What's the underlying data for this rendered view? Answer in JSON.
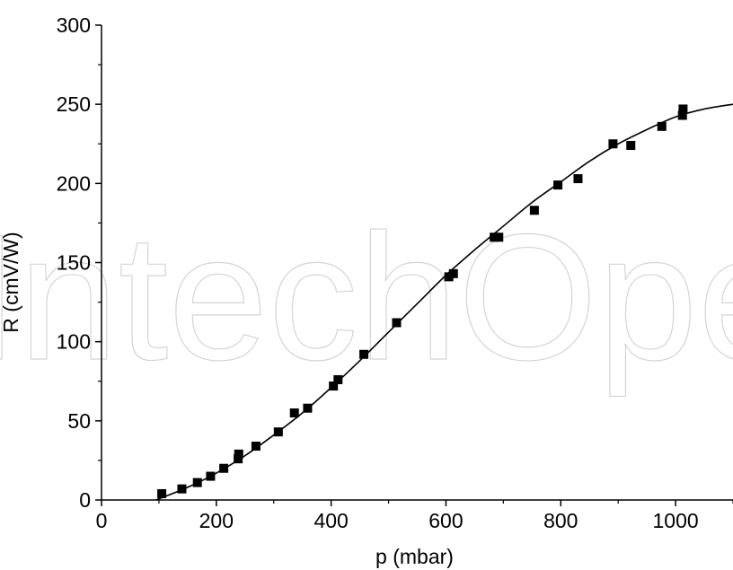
{
  "chart_data": {
    "type": "scatter",
    "title": "",
    "xlabel": "p (mbar)",
    "ylabel": "R (cmV/W)",
    "xlim": [
      0,
      1100
    ],
    "ylim": [
      0,
      300
    ],
    "xticks": [
      0,
      200,
      400,
      600,
      800,
      1000
    ],
    "yticks": [
      0,
      50,
      100,
      150,
      200,
      250,
      300
    ],
    "grid": false,
    "watermark": "IntechOpen",
    "series": [
      {
        "type": "scatter",
        "marker": "square",
        "color": "#000000",
        "x": [
          105,
          140,
          167,
          190,
          213,
          238,
          239,
          269,
          308,
          336,
          359,
          404,
          412,
          457,
          514,
          605,
          613,
          684,
          692,
          754,
          795,
          830,
          891,
          922,
          976,
          1012,
          1013
        ],
        "y": [
          4,
          7,
          11,
          15,
          20,
          26,
          29,
          34,
          43,
          55,
          58,
          72,
          76,
          92,
          112,
          141,
          143,
          166,
          166,
          183,
          199,
          203,
          225,
          224,
          236,
          243,
          247
        ]
      },
      {
        "type": "line",
        "color": "#000000",
        "x": [
          95,
          150,
          200,
          250,
          300,
          350,
          400,
          450,
          500,
          550,
          600,
          650,
          700,
          750,
          800,
          850,
          900,
          950,
          1000,
          1050,
          1100
        ],
        "y": [
          0,
          8,
          17,
          28,
          41,
          55,
          71,
          88,
          106,
          124,
          142,
          158,
          173,
          188,
          201,
          214,
          225,
          234,
          242,
          247,
          250
        ]
      }
    ]
  }
}
